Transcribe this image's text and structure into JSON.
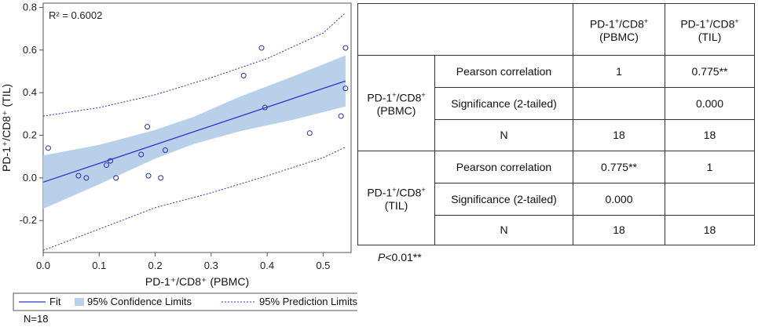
{
  "chart_data": {
    "type": "scatter",
    "xlabel": "PD-1⁺/CD8⁺ (PBMC)",
    "ylabel": "PD-1⁺/CD8⁺ (TIL)",
    "xlim": [
      0.0,
      0.55
    ],
    "ylim": [
      -0.35,
      0.82
    ],
    "xticks": [
      "0.0",
      "0.1",
      "0.2",
      "0.3",
      "0.4",
      "0.5"
    ],
    "yticks": [
      "-0.2",
      "0.0",
      "0.2",
      "0.4",
      "0.6",
      "0.8"
    ],
    "annotation": "R² = 0.6002",
    "points": [
      [
        0.009,
        0.14
      ],
      [
        0.063,
        0.01
      ],
      [
        0.077,
        0.0
      ],
      [
        0.113,
        0.06
      ],
      [
        0.12,
        0.08
      ],
      [
        0.13,
        0.0
      ],
      [
        0.175,
        0.11
      ],
      [
        0.186,
        0.24
      ],
      [
        0.188,
        0.01
      ],
      [
        0.21,
        0.0
      ],
      [
        0.218,
        0.13
      ],
      [
        0.358,
        0.48
      ],
      [
        0.39,
        0.61
      ],
      [
        0.396,
        0.33
      ],
      [
        0.476,
        0.21
      ],
      [
        0.532,
        0.29
      ],
      [
        0.54,
        0.61
      ],
      [
        0.54,
        0.42
      ]
    ],
    "fit": {
      "x": [
        0.0,
        0.54
      ],
      "y": [
        -0.02,
        0.455
      ]
    },
    "confidence_upper": [
      [
        0.0,
        0.105
      ],
      [
        0.1,
        0.155
      ],
      [
        0.2,
        0.225
      ],
      [
        0.27,
        0.288
      ],
      [
        0.35,
        0.38
      ],
      [
        0.45,
        0.48
      ],
      [
        0.54,
        0.575
      ]
    ],
    "confidence_lower": [
      [
        0.0,
        -0.145
      ],
      [
        0.1,
        -0.03
      ],
      [
        0.2,
        0.09
      ],
      [
        0.27,
        0.16
      ],
      [
        0.35,
        0.218
      ],
      [
        0.45,
        0.275
      ],
      [
        0.54,
        0.335
      ]
    ],
    "prediction_upper": [
      [
        0.0,
        0.29
      ],
      [
        0.1,
        0.33
      ],
      [
        0.2,
        0.39
      ],
      [
        0.3,
        0.47
      ],
      [
        0.4,
        0.56
      ],
      [
        0.5,
        0.68
      ],
      [
        0.54,
        0.775
      ]
    ],
    "prediction_lower": [
      [
        0.0,
        -0.34
      ],
      [
        0.1,
        -0.24
      ],
      [
        0.2,
        -0.14
      ],
      [
        0.3,
        -0.07
      ],
      [
        0.4,
        0.01
      ],
      [
        0.5,
        0.095
      ],
      [
        0.54,
        0.145
      ]
    ],
    "legend": [
      "Fit",
      "95% Confidence Limits",
      "95% Prediction Limits"
    ],
    "colors": {
      "fit": "#2a35c8",
      "band": "#b9d0ea",
      "point": "#2a2aa0",
      "prediction": "#2a35c8"
    }
  },
  "table": {
    "col_headers": [
      "PD-1⁺/CD8⁺ (PBMC)",
      "PD-1⁺/CD8⁺ (TIL)"
    ],
    "groups": [
      {
        "label": "PD-1⁺/CD8⁺ (PBMC)",
        "rows": [
          {
            "stat": "Pearson correlation",
            "pbmc": "1",
            "til": "0.775**"
          },
          {
            "stat": "Significance (2-tailed)",
            "pbmc": "",
            "til": "0.000"
          },
          {
            "stat": "N",
            "pbmc": "18",
            "til": "18"
          }
        ]
      },
      {
        "label": "PD-1⁺/CD8⁺ (TIL)",
        "rows": [
          {
            "stat": "Pearson correlation",
            "pbmc": "0.775**",
            "til": "1"
          },
          {
            "stat": "Significance (2-tailed)",
            "pbmc": "0.000",
            "til": ""
          },
          {
            "stat": "N",
            "pbmc": "18",
            "til": "18"
          }
        ]
      }
    ],
    "p_note": "P<0.01**"
  },
  "n_note": "N=18"
}
